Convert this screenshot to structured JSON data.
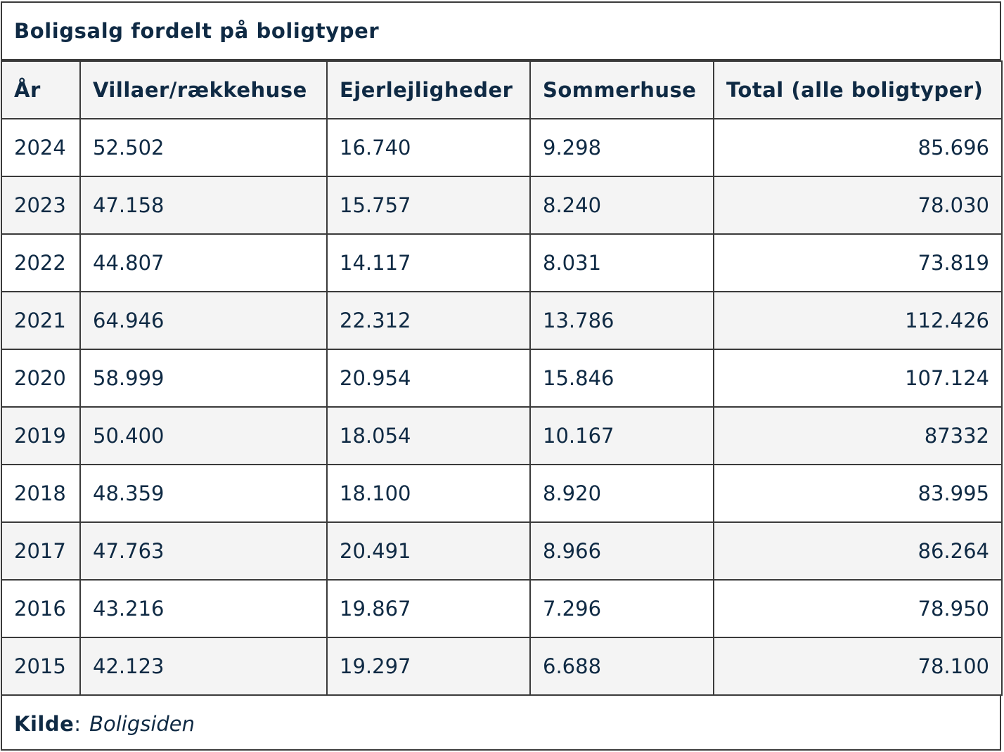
{
  "caption": "Boligsalg fordelt på boligtyper",
  "headers": [
    "År",
    "Villaer/rækkehuse",
    "Ejerlejligheder",
    "Sommerhuse",
    "Total (alle boligtyper)"
  ],
  "rows": [
    [
      "2024",
      "52.502",
      "16.740",
      "9.298",
      "85.696"
    ],
    [
      "2023",
      "47.158",
      "15.757",
      "8.240",
      "78.030"
    ],
    [
      "2022",
      "44.807",
      "14.117",
      "8.031",
      "73.819"
    ],
    [
      "2021",
      "64.946",
      "22.312",
      "13.786",
      "112.426"
    ],
    [
      "2020",
      "58.999",
      "20.954",
      "15.846",
      "107.124"
    ],
    [
      "2019",
      "50.400",
      "18.054",
      "10.167",
      "87332"
    ],
    [
      "2018",
      "48.359",
      "18.100",
      "8.920",
      "83.995"
    ],
    [
      "2017",
      "47.763",
      "20.491",
      "8.966",
      "86.264"
    ],
    [
      "2016",
      "43.216",
      "19.867",
      "7.296",
      "78.950"
    ],
    [
      "2015",
      "42.123",
      "19.297",
      "6.688",
      "78.100"
    ]
  ],
  "footer": {
    "label": "Kilde",
    "separator": ":",
    "source": "Boligsiden"
  }
}
